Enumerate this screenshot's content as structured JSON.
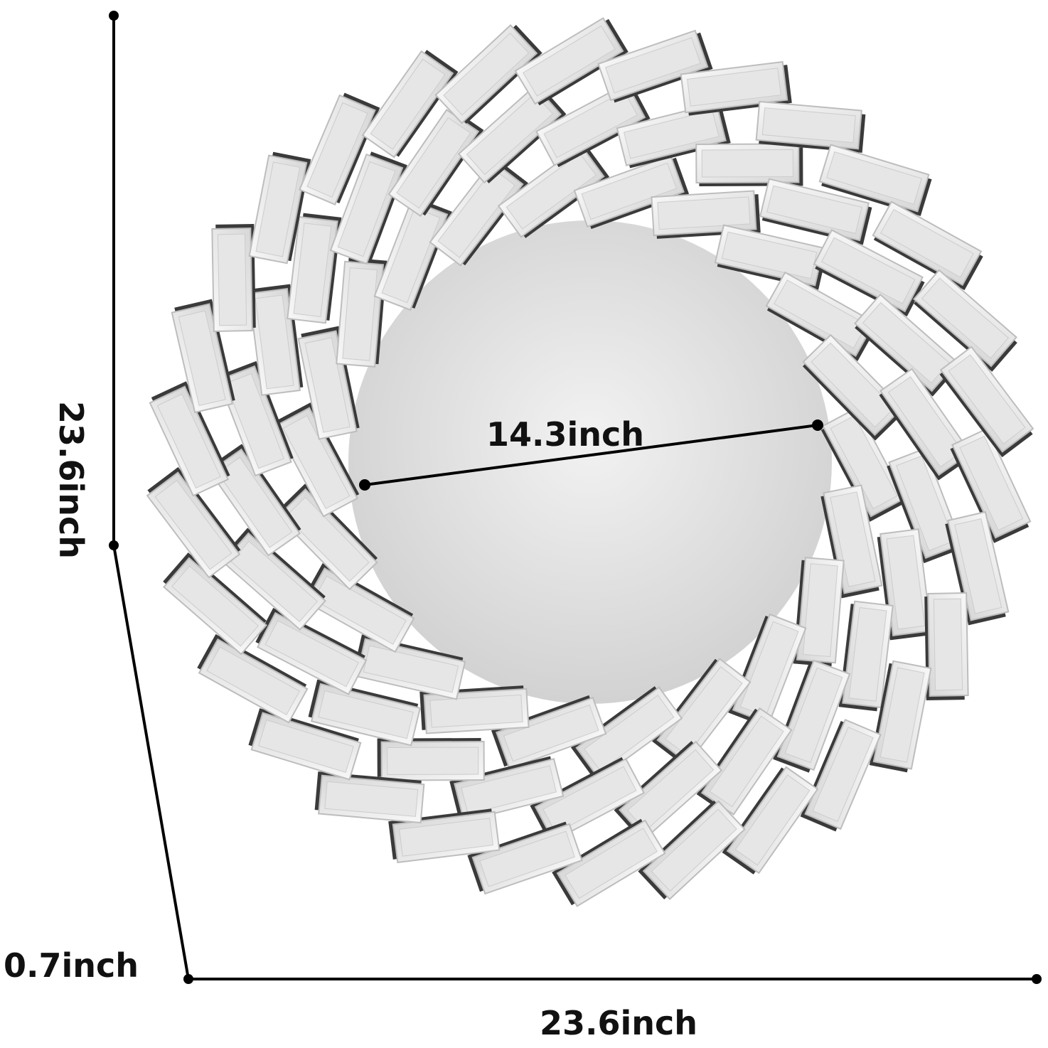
{
  "product": {
    "type": "spiral beveled-tile round wall mirror",
    "colors": {
      "tile": "#e6e6e6",
      "tile_edge": "#bdbdbd",
      "shadow": "#3a3a3a",
      "mirror": "#dcdcdc",
      "line": "#000000"
    }
  },
  "dimensions": {
    "height": "23.6inch",
    "width": "23.6inch",
    "depth": "0.7inch",
    "inner_diameter": "14.3inch"
  }
}
